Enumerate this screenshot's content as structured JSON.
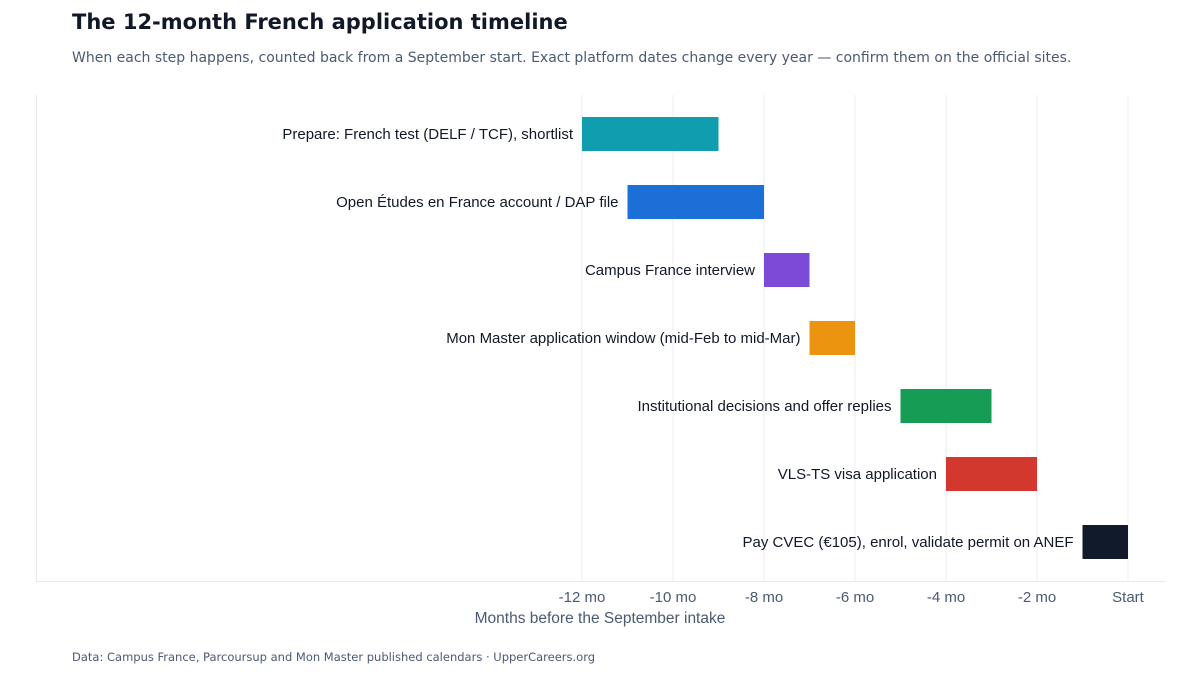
{
  "title": "The 12-month French application timeline",
  "subtitle": "When each step happens, counted back from a September start. Exact platform dates change every year — confirm them on the official sites.",
  "footer": "Data: Campus France, Parcoursup and Mon Master published calendars  ·  UpperCareers.org",
  "chart_data": {
    "type": "bar",
    "orientation": "horizontal-range",
    "title": "The 12-month French application timeline",
    "subtitle": "When each step happens, counted back from a September start. Exact platform dates change every year — confirm them on the official sites.",
    "xlabel": "Months before the September intake",
    "ylabel": "",
    "xlim": [
      -12,
      0
    ],
    "xticks": [
      -12,
      -10,
      -8,
      -6,
      -4,
      -2,
      0
    ],
    "xtick_labels": [
      "-12 mo",
      "-10 mo",
      "-8 mo",
      "-6 mo",
      "-4 mo",
      "-2 mo",
      "Start"
    ],
    "grid": "vertical",
    "legend": "none",
    "categories": [
      "Prepare: French test (DELF / TCF), shortlist",
      "Open Études en France account / DAP file",
      "Campus France interview",
      "Mon Master application window (mid-Feb to mid-Mar)",
      "Institutional decisions and offer replies",
      "VLS-TS visa application",
      "Pay CVEC (€105), enrol, validate permit on ANEF"
    ],
    "bars": [
      {
        "start": -12,
        "end": -9,
        "color": "#0f9daf"
      },
      {
        "start": -11,
        "end": -8,
        "color": "#1d6fd8"
      },
      {
        "start": -8,
        "end": -7,
        "color": "#7b4bd8"
      },
      {
        "start": -7,
        "end": -6,
        "color": "#ec940f"
      },
      {
        "start": -5,
        "end": -3,
        "color": "#169c55"
      },
      {
        "start": -4,
        "end": -2,
        "color": "#d3382e"
      },
      {
        "start": -1,
        "end": 0,
        "color": "#111a2b"
      }
    ]
  }
}
